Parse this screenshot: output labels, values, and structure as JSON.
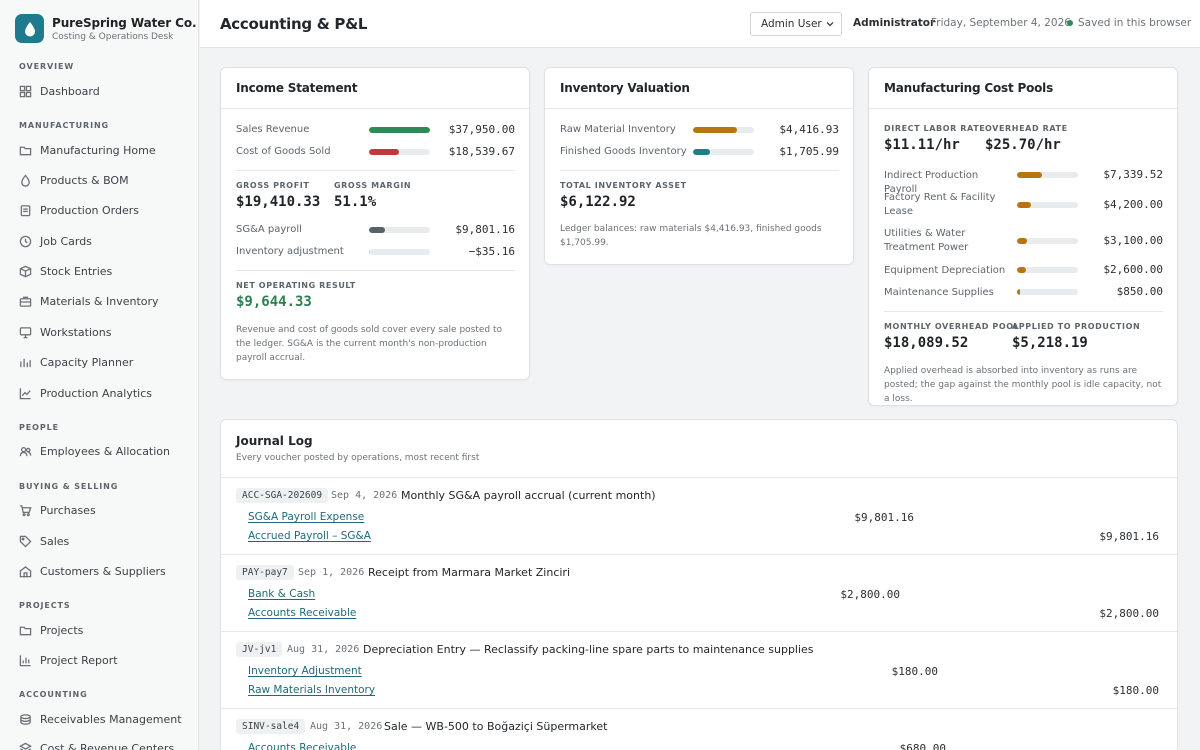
{
  "brand": {
    "name": "PureSpring Water Co.",
    "subtitle": "Costing & Operations Desk"
  },
  "sidebar": {
    "sections": [
      {
        "title": "Overview",
        "items": [
          {
            "label": "Dashboard",
            "icon": "grid-icon"
          }
        ]
      },
      {
        "title": "Manufacturing",
        "items": [
          {
            "label": "Manufacturing Home",
            "icon": "folder-icon"
          },
          {
            "label": "Products & BOM",
            "icon": "droplet-icon"
          },
          {
            "label": "Production Orders",
            "icon": "clipboard-icon"
          },
          {
            "label": "Job Cards",
            "icon": "clock-icon"
          },
          {
            "label": "Stock Entries",
            "icon": "box-icon"
          },
          {
            "label": "Materials & Inventory",
            "icon": "briefcase-icon"
          },
          {
            "label": "Workstations",
            "icon": "monitor-icon"
          },
          {
            "label": "Capacity Planner",
            "icon": "bars-icon"
          },
          {
            "label": "Production Analytics",
            "icon": "trend-icon"
          }
        ]
      },
      {
        "title": "People",
        "items": [
          {
            "label": "Employees & Allocation",
            "icon": "users-icon"
          }
        ]
      },
      {
        "title": "Buying & Selling",
        "items": [
          {
            "label": "Purchases",
            "icon": "cart-icon"
          },
          {
            "label": "Sales",
            "icon": "tag-icon"
          },
          {
            "label": "Customers & Suppliers",
            "icon": "home-icon"
          }
        ]
      },
      {
        "title": "Projects",
        "items": [
          {
            "label": "Projects",
            "icon": "folder-icon"
          },
          {
            "label": "Project Report",
            "icon": "chart-icon"
          }
        ]
      },
      {
        "title": "Accounting",
        "items": [
          {
            "label": "Receivables Management",
            "icon": "coins-icon"
          },
          {
            "label": "Cost & Revenue Centers",
            "icon": "layers-icon"
          }
        ]
      }
    ]
  },
  "header": {
    "title": "Accounting & P&L",
    "user": "Admin User",
    "role": "Administrator",
    "date": "Friday, September 4, 2026",
    "saved": "Saved in this browser"
  },
  "income": {
    "title": "Income Statement",
    "sales_label": "Sales Revenue",
    "sales_value": "$37,950.00",
    "sales_fill": 1.0,
    "cogs_label": "Cost of Goods Sold",
    "cogs_value": "$18,539.67",
    "cogs_fill": 0.49,
    "gp_label": "Gross Profit",
    "gp_value": "$19,410.33",
    "gm_label": "Gross Margin",
    "gm_value": "51.1%",
    "sga_label": "SG&A payroll",
    "sga_value": "$9,801.16",
    "sga_fill": 0.26,
    "inv_adj_label": "Inventory adjustment",
    "inv_adj_value": "−$35.16",
    "inv_adj_fill": 0.01,
    "net_label": "Net Operating Result",
    "net_value": "$9,644.33",
    "note": "Revenue and cost of goods sold cover every sale posted to the ledger. SG&A is the current month's non-production payroll accrual."
  },
  "inventory": {
    "title": "Inventory Valuation",
    "raw_label": "Raw Material Inventory",
    "raw_value": "$4,416.93",
    "raw_fill": 0.72,
    "fg_label": "Finished Goods Inventory",
    "fg_value": "$1,705.99",
    "fg_fill": 0.28,
    "total_label": "Total Inventory Asset",
    "total_value": "$6,122.92",
    "note": "Ledger balances: raw materials $4,416.93, finished goods $1,705.99."
  },
  "cost_pools": {
    "title": "Manufacturing Cost Pools",
    "dl_label": "Direct Labor Rate",
    "dl_value": "$11.11/hr",
    "oh_label": "Overhead Rate",
    "oh_value": "$25.70/hr",
    "pools": [
      {
        "label": "Indirect Production Payroll",
        "value": "$7,339.52",
        "fill": 0.41
      },
      {
        "label": "Factory Rent & Facility Lease",
        "value": "$4,200.00",
        "fill": 0.23
      },
      {
        "label": "Utilities & Water Treatment Power",
        "value": "$3,100.00",
        "fill": 0.17
      },
      {
        "label": "Equipment Depreciation",
        "value": "$2,600.00",
        "fill": 0.14
      },
      {
        "label": "Maintenance Supplies",
        "value": "$850.00",
        "fill": 0.05
      }
    ],
    "monthly_label": "Monthly Overhead Pool",
    "monthly_value": "$18,089.52",
    "applied_label": "Applied to Production",
    "applied_value": "$5,218.19",
    "note": "Applied overhead is absorbed into inventory as runs are posted; the gap against the monthly pool is idle capacity, not a loss."
  },
  "journal": {
    "title": "Journal Log",
    "subtitle": "Every voucher posted by operations, most recent first",
    "entries": [
      {
        "voucher": "ACC-SGA-202609",
        "date": "Sep 4, 2026",
        "desc": "Monthly SG&A payroll accrual (current month)",
        "debit_acct": "SG&A Payroll Expense",
        "debit": "$9,801.16",
        "credit_acct": "Accrued Payroll – SG&A",
        "credit": "$9,801.16"
      },
      {
        "voucher": "PAY-pay7",
        "date": "Sep 1, 2026",
        "desc": "Receipt from Marmara Market Zinciri",
        "debit_acct": "Bank & Cash",
        "debit": "$2,800.00",
        "credit_acct": "Accounts Receivable",
        "credit": "$2,800.00"
      },
      {
        "voucher": "JV-jv1",
        "date": "Aug 31, 2026",
        "desc": "Depreciation Entry — Reclassify packing-line spare parts to maintenance supplies",
        "debit_acct": "Inventory Adjustment",
        "debit": "$180.00",
        "credit_acct": "Raw Materials Inventory",
        "credit": "$180.00"
      },
      {
        "voucher": "SINV-sale4",
        "date": "Aug 31, 2026",
        "desc": "Sale — WB-500 to Boğaziçi Süpermarket",
        "debit_acct": "Accounts Receivable",
        "debit": "$680.00",
        "credit_acct": "",
        "credit": ""
      }
    ]
  },
  "colors": {
    "accent": "#1e7a8c",
    "green": "#2e8b57",
    "red": "#c0393b",
    "amber": "#b8740f",
    "teal": "#1f7d86",
    "slate": "#56636a"
  }
}
